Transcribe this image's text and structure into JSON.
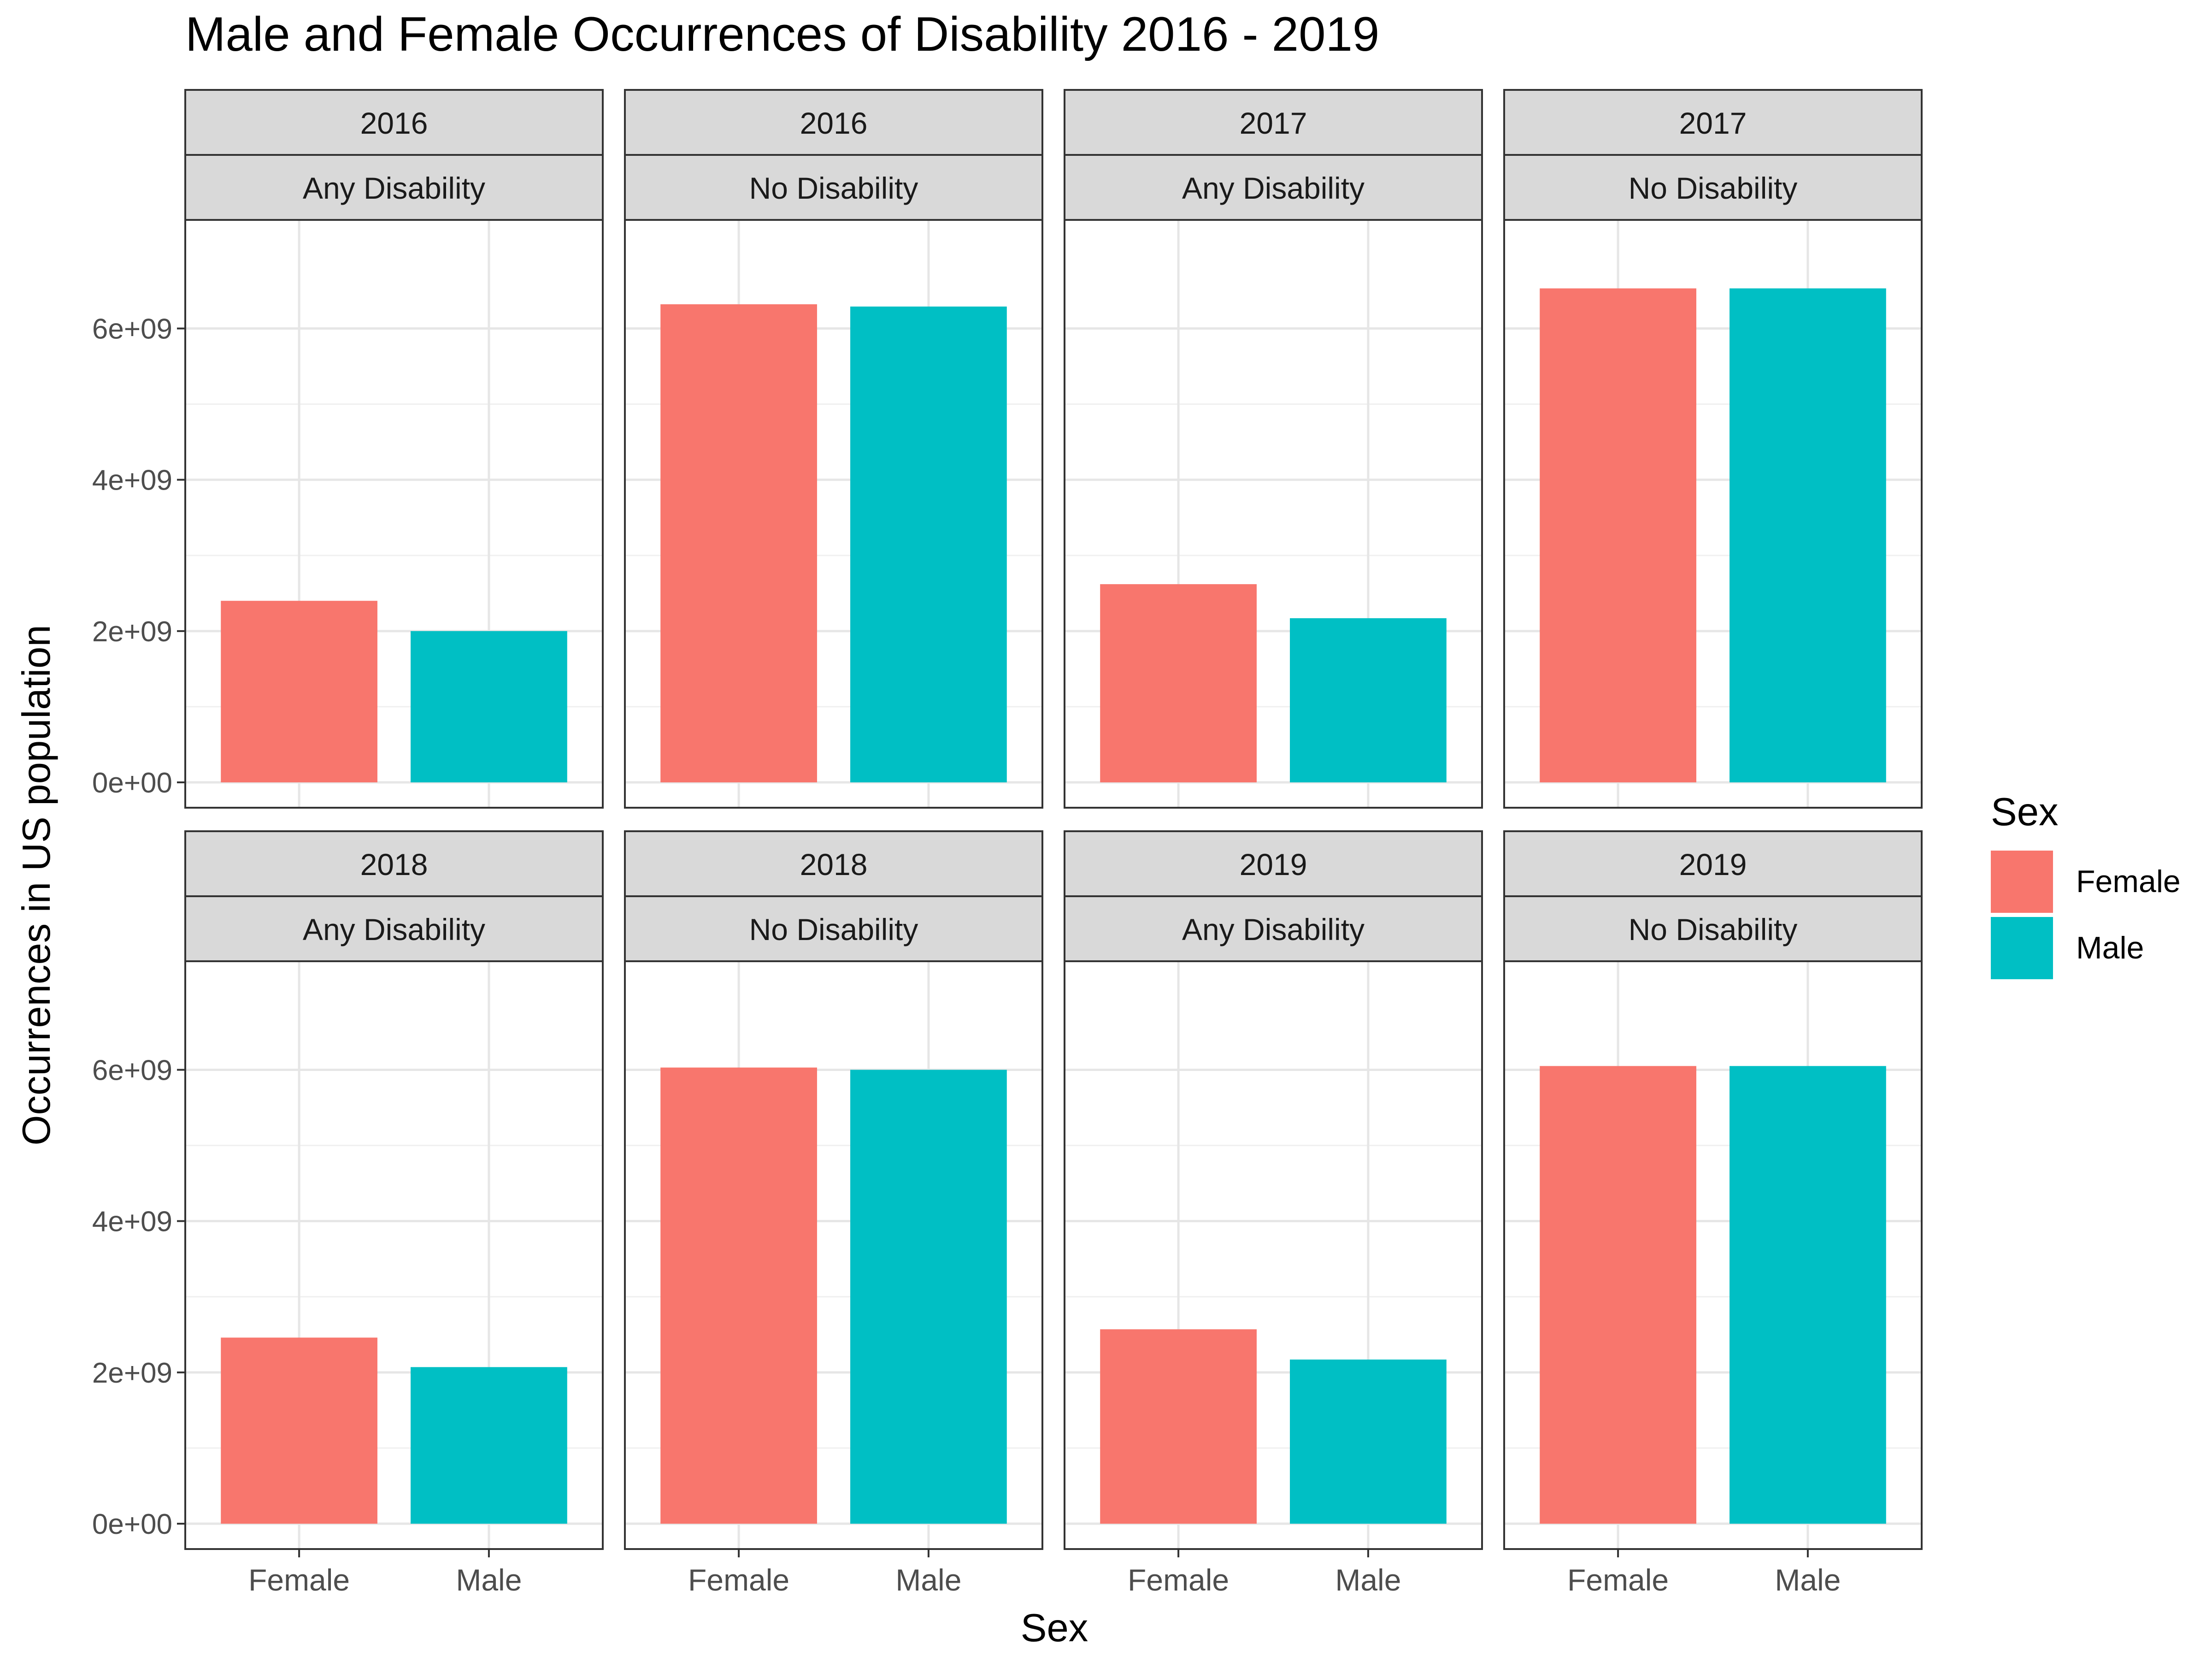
{
  "chart_data": {
    "type": "bar",
    "title": "Male and Female Occurrences of Disability 2016 - 2019",
    "xlabel": "Sex",
    "ylabel": "Occurrences in US population",
    "categories": [
      "Female",
      "Male"
    ],
    "ylim": [
      0,
      7100000000
    ],
    "yticks": [
      {
        "value": 0,
        "label": "0e+00"
      },
      {
        "value": 2000000000,
        "label": "2e+09"
      },
      {
        "value": 4000000000,
        "label": "4e+09"
      },
      {
        "value": 6000000000,
        "label": "6e+09"
      }
    ],
    "grid": true,
    "legend": {
      "title": "Sex",
      "position": "right",
      "entries": [
        {
          "label": "Female",
          "color": "#F8766D"
        },
        {
          "label": "Male",
          "color": "#00BFC4"
        }
      ]
    },
    "colors": {
      "Female": "#F8766D",
      "Male": "#00BFC4"
    },
    "facets": [
      {
        "year": "2016",
        "status": "Any Disability",
        "values": [
          2400000000,
          2000000000
        ]
      },
      {
        "year": "2016",
        "status": "No Disability",
        "values": [
          6320000000,
          6290000000
        ]
      },
      {
        "year": "2017",
        "status": "Any Disability",
        "values": [
          2620000000,
          2170000000
        ]
      },
      {
        "year": "2017",
        "status": "No Disability",
        "values": [
          6530000000,
          6530000000
        ]
      },
      {
        "year": "2018",
        "status": "Any Disability",
        "values": [
          2460000000,
          2070000000
        ]
      },
      {
        "year": "2018",
        "status": "No Disability",
        "values": [
          6030000000,
          6000000000
        ]
      },
      {
        "year": "2019",
        "status": "Any Disability",
        "values": [
          2570000000,
          2170000000
        ]
      },
      {
        "year": "2019",
        "status": "No Disability",
        "values": [
          6050000000,
          6050000000
        ]
      }
    ]
  }
}
